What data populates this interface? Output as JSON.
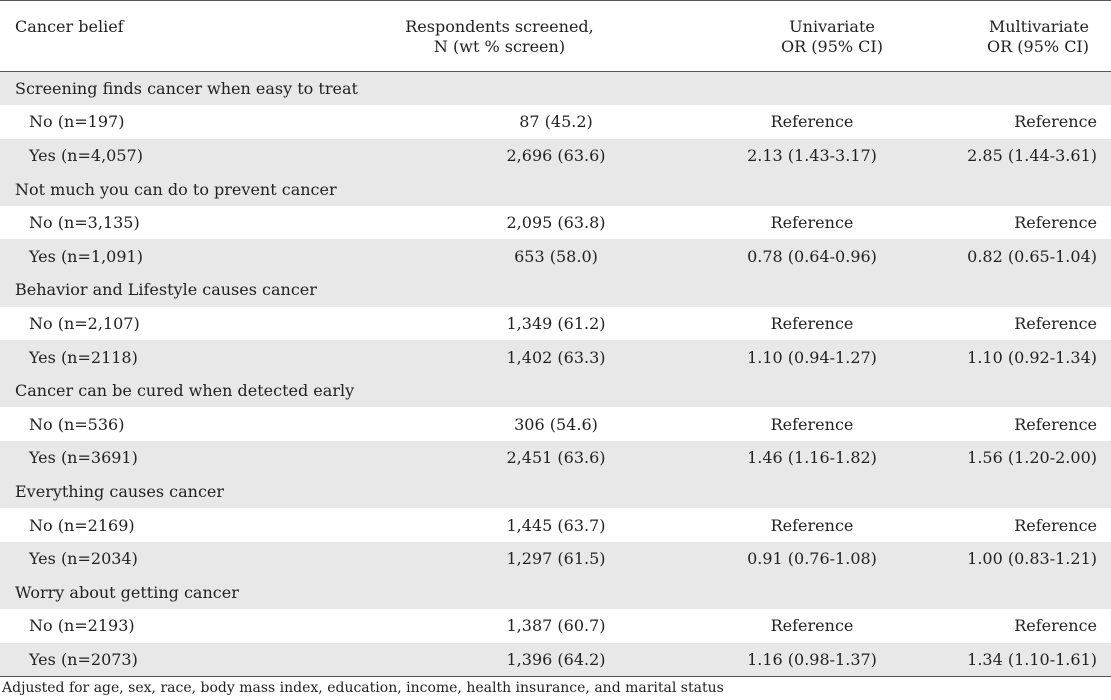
{
  "table": {
    "headers": {
      "belief": "Cancer belief",
      "screened_line1": "Respondents screened,",
      "screened_line2": "N (wt % screen)",
      "uni_line1": "Univariate",
      "uni_line2": "OR (95% CI)",
      "multi_line1": "Multivariate",
      "multi_line2": "OR (95% CI)"
    },
    "groups": [
      {
        "title": "Screening finds cancer when easy to treat",
        "rows": [
          {
            "label": "No (n=197)",
            "n": "87 (45.2)",
            "uni": "Reference",
            "multi": "Reference"
          },
          {
            "label": "Yes (n=4,057)",
            "n": "2,696 (63.6)",
            "uni": "2.13 (1.43-3.17)",
            "multi": "2.85 (1.44-3.61)"
          }
        ]
      },
      {
        "title": "Not much you can do to prevent cancer",
        "rows": [
          {
            "label": "No (n=3,135)",
            "n": "2,095 (63.8)",
            "uni": "Reference",
            "multi": "Reference"
          },
          {
            "label": "Yes (n=1,091)",
            "n": "653 (58.0)",
            "uni": "0.78 (0.64-0.96)",
            "multi": "0.82 (0.65-1.04)"
          }
        ]
      },
      {
        "title": "Behavior and Lifestyle causes cancer",
        "rows": [
          {
            "label": "No (n=2,107)",
            "n": "1,349 (61.2)",
            "uni": "Reference",
            "multi": "Reference"
          },
          {
            "label": "Yes (n=2118)",
            "n": "1,402 (63.3)",
            "uni": "1.10 (0.94-1.27)",
            "multi": "1.10 (0.92-1.34)"
          }
        ]
      },
      {
        "title": "Cancer can be cured when detected early",
        "rows": [
          {
            "label": "No (n=536)",
            "n": "306 (54.6)",
            "uni": "Reference",
            "multi": "Reference"
          },
          {
            "label": "Yes (n=3691)",
            "n": "2,451 (63.6)",
            "uni": "1.46 (1.16-1.82)",
            "multi": "1.56 (1.20-2.00)"
          }
        ]
      },
      {
        "title": "Everything causes cancer",
        "rows": [
          {
            "label": "No (n=2169)",
            "n": "1,445 (63.7)",
            "uni": "Reference",
            "multi": "Reference"
          },
          {
            "label": "Yes (n=2034)",
            "n": "1,297 (61.5)",
            "uni": "0.91 (0.76-1.08)",
            "multi": "1.00 (0.83-1.21)"
          }
        ]
      },
      {
        "title": "Worry about getting cancer",
        "rows": [
          {
            "label": "No (n=2193)",
            "n": "1,387 (60.7)",
            "uni": "Reference",
            "multi": "Reference"
          },
          {
            "label": "Yes (n=2073)",
            "n": "1,396 (64.2)",
            "uni": "1.16 (0.98-1.37)",
            "multi": "1.34 (1.10-1.61)"
          }
        ]
      }
    ],
    "footnote": "Adjusted for age, sex, race, body mass index, education, income, health insurance, and marital status"
  }
}
